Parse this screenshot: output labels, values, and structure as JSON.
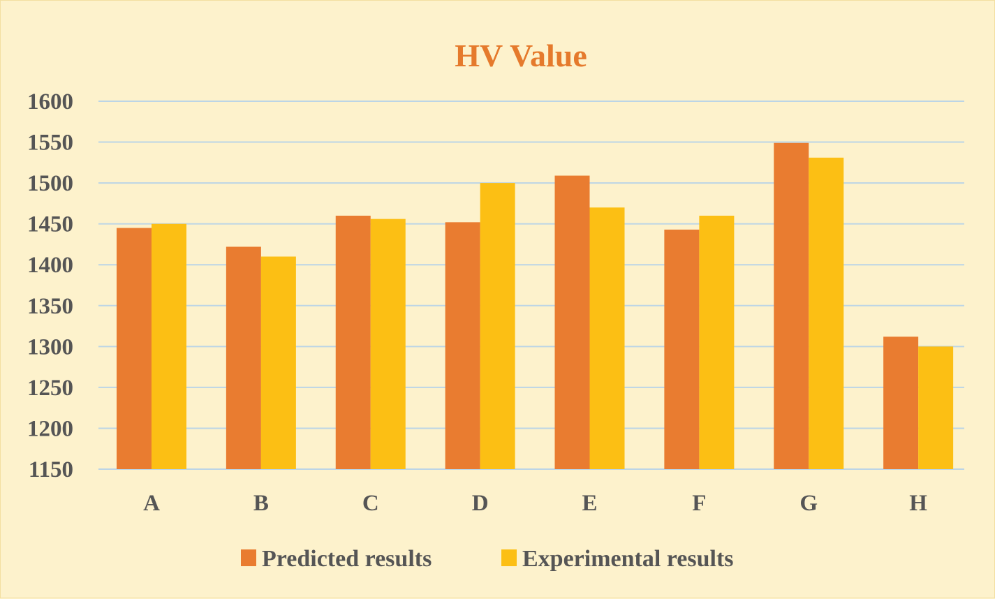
{
  "chart_data": {
    "type": "bar",
    "title": "HV Value",
    "title_color": "#e57a2c",
    "categories": [
      "A",
      "B",
      "C",
      "D",
      "E",
      "F",
      "G",
      "H"
    ],
    "series": [
      {
        "name": "Predicted results",
        "color": "#e97c30",
        "values": [
          1445,
          1422,
          1460,
          1452,
          1509,
          1443,
          1549,
          1312
        ]
      },
      {
        "name": "Experimental results",
        "color": "#fcbf14",
        "values": [
          1450,
          1410,
          1456,
          1500,
          1470,
          1460,
          1531,
          1300
        ]
      }
    ],
    "ylim": [
      1150,
      1600
    ],
    "yticks": [
      1150,
      1200,
      1250,
      1300,
      1350,
      1400,
      1450,
      1500,
      1550,
      1600
    ],
    "grid": true,
    "grid_color": "#bcd5e6",
    "legend_position": "bottom"
  }
}
